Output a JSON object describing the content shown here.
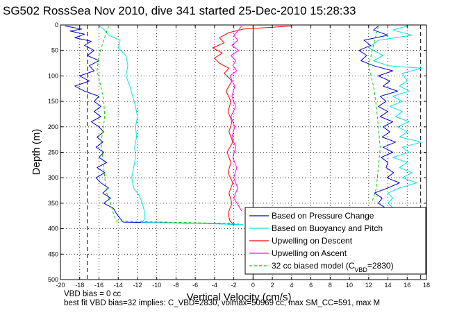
{
  "title": "SG502 RossSea Nov 2010, dive 341 started 25-Dec-2010 15:28:33",
  "footer": {
    "line1": "VBD bias = 0 cc",
    "line2": "best fit VBD bias=32 implies: C_VBD=2830, volmax=50969 cc, max SM_CC=591, max M"
  },
  "colors": {
    "pressure": "#0000cc",
    "buoyancy": "#00e5e5",
    "descent": "#ff0000",
    "ascent": "#ff00ff",
    "model": "#00cc00"
  },
  "chart_data": {
    "type": "line",
    "title": "SG502 RossSea Nov 2010, dive 341 started 25-Dec-2010 15:28:33",
    "xlabel": "Vertical Velocity (cm/s)",
    "ylabel": "Depth (m)",
    "xlim": [
      -20,
      18
    ],
    "ylim": [
      500,
      0
    ],
    "y_reversed": true,
    "grid": true,
    "xticks": [
      -20,
      -18,
      -16,
      -14,
      -12,
      -10,
      -8,
      -6,
      -4,
      -2,
      0,
      2,
      4,
      6,
      8,
      10,
      12,
      14,
      16,
      18
    ],
    "yticks": [
      0,
      50,
      100,
      150,
      200,
      250,
      300,
      350,
      400,
      450,
      500
    ],
    "legend_position": "bottom-right",
    "reference_lines": {
      "dashed_vertical_black": [
        -17.2,
        17.4
      ],
      "solid_vertical_black": [
        0
      ]
    },
    "series": [
      {
        "name": "Based on Pressure Change",
        "color": "#0000cc",
        "group": "descent_side",
        "points": [
          [
            -19.5,
            2
          ],
          [
            -17.8,
            8
          ],
          [
            -19,
            12
          ],
          [
            -17.5,
            18
          ],
          [
            -18.5,
            25
          ],
          [
            -16.8,
            32
          ],
          [
            -17.5,
            40
          ],
          [
            -16.5,
            50
          ],
          [
            -17.2,
            60
          ],
          [
            -16,
            70
          ],
          [
            -17,
            80
          ],
          [
            -16.5,
            90
          ],
          [
            -18,
            100
          ],
          [
            -17,
            110
          ],
          [
            -18.5,
            120
          ],
          [
            -17.5,
            130
          ],
          [
            -16,
            140
          ],
          [
            -16.5,
            150
          ],
          [
            -15.8,
            160
          ],
          [
            -16.5,
            170
          ],
          [
            -15.8,
            180
          ],
          [
            -16.8,
            190
          ],
          [
            -16,
            200
          ],
          [
            -15.5,
            210
          ],
          [
            -16.2,
            220
          ],
          [
            -15.6,
            230
          ],
          [
            -16.3,
            240
          ],
          [
            -15.5,
            250
          ],
          [
            -16,
            260
          ],
          [
            -15.2,
            270
          ],
          [
            -16.2,
            280
          ],
          [
            -15.4,
            290
          ],
          [
            -16.3,
            300
          ],
          [
            -15.8,
            310
          ],
          [
            -15,
            320
          ],
          [
            -15.6,
            330
          ],
          [
            -14.8,
            340
          ],
          [
            -15.5,
            350
          ],
          [
            -14.5,
            360
          ],
          [
            -14.2,
            370
          ],
          [
            -13.8,
            380
          ],
          [
            -13.5,
            387
          ],
          [
            -4,
            390
          ],
          [
            -1.5,
            392
          ]
        ]
      },
      {
        "name": "Based on Buoyancy and Pitch",
        "color": "#00e5e5",
        "group": "descent_side",
        "points": [
          [
            -16,
            2
          ],
          [
            -15.5,
            8
          ],
          [
            -15,
            20
          ],
          [
            -13.8,
            30
          ],
          [
            -14,
            45
          ],
          [
            -13.2,
            60
          ],
          [
            -13,
            80
          ],
          [
            -13.2,
            100
          ],
          [
            -12.8,
            120
          ],
          [
            -12.5,
            140
          ],
          [
            -12.2,
            160
          ],
          [
            -12,
            180
          ],
          [
            -12.2,
            200
          ],
          [
            -12.1,
            220
          ],
          [
            -12.3,
            240
          ],
          [
            -12.2,
            260
          ],
          [
            -12.4,
            280
          ],
          [
            -12.6,
            300
          ],
          [
            -12.4,
            320
          ],
          [
            -11.8,
            335
          ],
          [
            -11.5,
            350
          ],
          [
            -11.3,
            365
          ],
          [
            -11.2,
            380
          ],
          [
            -11.6,
            388
          ],
          [
            -5,
            390
          ],
          [
            -1,
            392
          ]
        ]
      },
      {
        "name": "32 cc biased model (C_VBD=2830)",
        "color": "#00cc00",
        "group": "descent_side",
        "points": [
          [
            -15,
            2
          ],
          [
            -15.5,
            30
          ],
          [
            -16,
            60
          ],
          [
            -16.2,
            90
          ],
          [
            -15.8,
            120
          ],
          [
            -15.5,
            150
          ],
          [
            -15.4,
            180
          ],
          [
            -15.6,
            210
          ],
          [
            -15.8,
            230
          ],
          [
            -15.6,
            260
          ],
          [
            -15.4,
            300
          ],
          [
            -15.2,
            330
          ],
          [
            -14.8,
            350
          ],
          [
            -14.5,
            370
          ],
          [
            -14.2,
            385
          ],
          [
            -1.5,
            390
          ]
        ]
      },
      {
        "name": "Upwelling on Descent",
        "color": "#ff0000",
        "group": "center",
        "points": [
          [
            4,
            2
          ],
          [
            -1,
            8
          ],
          [
            -2.5,
            15
          ],
          [
            -3.5,
            25
          ],
          [
            -3,
            35
          ],
          [
            -4.2,
            45
          ],
          [
            -3.2,
            55
          ],
          [
            -4,
            65
          ],
          [
            -3.5,
            75
          ],
          [
            -2.5,
            85
          ],
          [
            -3,
            95
          ],
          [
            -2.2,
            110
          ],
          [
            -2.8,
            130
          ],
          [
            -2.3,
            150
          ],
          [
            -2.6,
            170
          ],
          [
            -2.2,
            190
          ],
          [
            -2.5,
            210
          ],
          [
            -2.1,
            230
          ],
          [
            -2.7,
            250
          ],
          [
            -2.3,
            270
          ],
          [
            -2.6,
            290
          ],
          [
            -2.1,
            310
          ],
          [
            -2.5,
            330
          ],
          [
            -2.2,
            350
          ],
          [
            -2.6,
            370
          ],
          [
            -2.4,
            385
          ],
          [
            -2,
            392
          ]
        ]
      },
      {
        "name": "Upwelling on Ascent",
        "color": "#ff00ff",
        "group": "center",
        "points": [
          [
            -1.2,
            2
          ],
          [
            -1.5,
            10
          ],
          [
            -2,
            20
          ],
          [
            -1.6,
            30
          ],
          [
            -2.2,
            40
          ],
          [
            -1.5,
            50
          ],
          [
            -2.3,
            60
          ],
          [
            -1.8,
            70
          ],
          [
            -2.1,
            80
          ],
          [
            -1.7,
            90
          ],
          [
            -2.4,
            100
          ],
          [
            -1.9,
            120
          ],
          [
            -2.2,
            140
          ],
          [
            -1.8,
            160
          ],
          [
            -2.3,
            180
          ],
          [
            -1.9,
            200
          ],
          [
            -2.2,
            220
          ],
          [
            -1.8,
            240
          ],
          [
            -2.1,
            260
          ],
          [
            -1.7,
            280
          ],
          [
            -2,
            300
          ],
          [
            -1.6,
            320
          ],
          [
            -2,
            340
          ],
          [
            -1.5,
            355
          ],
          [
            -1.2,
            365
          ]
        ]
      },
      {
        "name": "Based on Pressure Change",
        "color": "#0000cc",
        "group": "ascent_side",
        "legend": false,
        "points": [
          [
            13,
            2
          ],
          [
            12.5,
            10
          ],
          [
            14,
            20
          ],
          [
            11.5,
            30
          ],
          [
            12.2,
            40
          ],
          [
            11,
            50
          ],
          [
            11.8,
            60
          ],
          [
            11.2,
            70
          ],
          [
            12.5,
            80
          ],
          [
            14.5,
            90
          ],
          [
            13,
            100
          ],
          [
            14.2,
            110
          ],
          [
            13.5,
            120
          ],
          [
            15,
            130
          ],
          [
            13.2,
            140
          ],
          [
            13.8,
            150
          ],
          [
            13,
            160
          ],
          [
            14,
            170
          ],
          [
            13.2,
            180
          ],
          [
            14.5,
            190
          ],
          [
            13.5,
            200
          ],
          [
            14.2,
            210
          ],
          [
            13.4,
            220
          ],
          [
            14.8,
            230
          ],
          [
            13.5,
            240
          ],
          [
            14.5,
            250
          ],
          [
            13.3,
            260
          ],
          [
            14,
            270
          ],
          [
            13.8,
            280
          ],
          [
            14.6,
            290
          ],
          [
            13.9,
            300
          ],
          [
            15.2,
            310
          ],
          [
            14,
            320
          ],
          [
            12.6,
            330
          ],
          [
            13.4,
            340
          ],
          [
            13,
            350
          ],
          [
            13.8,
            360
          ]
        ]
      },
      {
        "name": "Based on Buoyancy and Pitch",
        "color": "#00e5e5",
        "group": "ascent_side",
        "legend": false,
        "points": [
          [
            16,
            2
          ],
          [
            14.5,
            10
          ],
          [
            16.5,
            20
          ],
          [
            13,
            30
          ],
          [
            12,
            45
          ],
          [
            13.5,
            60
          ],
          [
            12.5,
            70
          ],
          [
            14,
            80
          ],
          [
            17.5,
            85
          ],
          [
            15.5,
            95
          ],
          [
            16,
            110
          ],
          [
            15.2,
            120
          ],
          [
            16.2,
            130
          ],
          [
            14.5,
            140
          ],
          [
            15.5,
            150
          ],
          [
            14.2,
            160
          ],
          [
            15.5,
            170
          ],
          [
            14.8,
            180
          ],
          [
            16.2,
            190
          ],
          [
            15,
            200
          ],
          [
            16,
            210
          ],
          [
            15.2,
            220
          ],
          [
            17.5,
            230
          ],
          [
            15.5,
            240
          ],
          [
            16.2,
            250
          ],
          [
            14.5,
            260
          ],
          [
            16,
            270
          ],
          [
            15.2,
            280
          ],
          [
            16.5,
            290
          ],
          [
            15.5,
            300
          ],
          [
            17,
            310
          ],
          [
            15.2,
            320
          ],
          [
            14,
            330
          ],
          [
            14.5,
            340
          ],
          [
            14,
            350
          ],
          [
            14.6,
            360
          ]
        ]
      },
      {
        "name": "32 cc biased model (C_VBD=2830)",
        "color": "#00cc00",
        "group": "ascent_side",
        "legend": false,
        "points": [
          [
            13,
            2
          ],
          [
            12.5,
            40
          ],
          [
            12,
            80
          ],
          [
            12.5,
            120
          ],
          [
            12.8,
            160
          ],
          [
            13,
            200
          ],
          [
            13.2,
            240
          ],
          [
            13,
            280
          ],
          [
            12.8,
            320
          ],
          [
            12.4,
            345
          ]
        ]
      }
    ],
    "legend": [
      {
        "label": "Based on Pressure Change",
        "color": "#0000cc",
        "style": "solid"
      },
      {
        "label": "Based on Buoyancy and Pitch",
        "color": "#00e5e5",
        "style": "solid"
      },
      {
        "label": "Upwelling on Descent",
        "color": "#ff0000",
        "style": "solid"
      },
      {
        "label": "Upwelling on Ascent",
        "color": "#ff00ff",
        "style": "solid"
      },
      {
        "label": "32 cc biased model (C",
        "sub": "VBD",
        "suffix": "=2830)",
        "color": "#00cc00",
        "style": "dashed"
      }
    ]
  }
}
